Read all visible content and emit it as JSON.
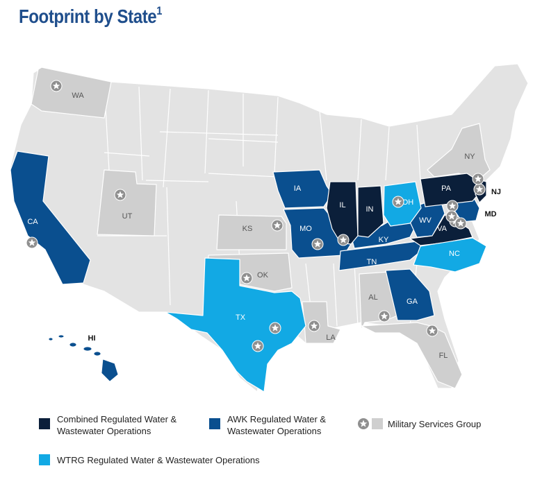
{
  "title": {
    "text": "Footprint by State",
    "sup": "1"
  },
  "colors": {
    "combined": "#0b1f3a",
    "awk": "#0a4f8f",
    "wtrg": "#12a9e4",
    "military": "#cfcfcf",
    "other": "#e3e3e3",
    "star_fill": "#8f8f8f"
  },
  "legend": {
    "combined": "Combined Regulated Water & Wastewater Operations",
    "awk": "AWK Regulated Water & Wastewater Operations",
    "military": "Military Services Group",
    "wtrg": "WTRG Regulated Water & Wastewater Operations"
  },
  "states": [
    {
      "id": "WA",
      "label": "WA",
      "category": "military"
    },
    {
      "id": "CA",
      "label": "CA",
      "category": "awk"
    },
    {
      "id": "UT",
      "label": "UT",
      "category": "military"
    },
    {
      "id": "KS",
      "label": "KS",
      "category": "military"
    },
    {
      "id": "OK",
      "label": "OK",
      "category": "military"
    },
    {
      "id": "TX",
      "label": "TX",
      "category": "wtrg"
    },
    {
      "id": "IA",
      "label": "IA",
      "category": "awk"
    },
    {
      "id": "MO",
      "label": "MO",
      "category": "awk"
    },
    {
      "id": "IL",
      "label": "IL",
      "category": "combined"
    },
    {
      "id": "IN",
      "label": "IN",
      "category": "combined"
    },
    {
      "id": "OH",
      "label": "OH",
      "category": "wtrg"
    },
    {
      "id": "KY",
      "label": "KY",
      "category": "awk"
    },
    {
      "id": "TN",
      "label": "TN",
      "category": "awk"
    },
    {
      "id": "WV",
      "label": "WV",
      "category": "awk"
    },
    {
      "id": "VA",
      "label": "VA",
      "category": "combined"
    },
    {
      "id": "NC",
      "label": "NC",
      "category": "wtrg"
    },
    {
      "id": "PA",
      "label": "PA",
      "category": "combined"
    },
    {
      "id": "NJ",
      "label": "NJ",
      "category": "combined"
    },
    {
      "id": "MD",
      "label": "MD",
      "category": "awk"
    },
    {
      "id": "NY",
      "label": "NY",
      "category": "military"
    },
    {
      "id": "GA",
      "label": "GA",
      "category": "awk"
    },
    {
      "id": "AL",
      "label": "AL",
      "category": "military"
    },
    {
      "id": "LA",
      "label": "LA",
      "category": "military"
    },
    {
      "id": "FL",
      "label": "FL",
      "category": "military"
    },
    {
      "id": "HI",
      "label": "HI",
      "category": "awk"
    }
  ]
}
